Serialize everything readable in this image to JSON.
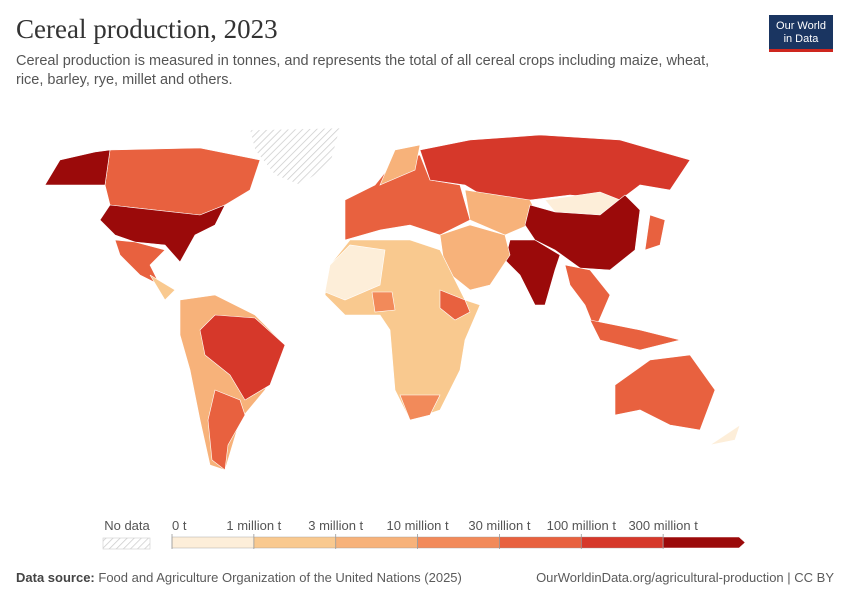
{
  "header": {
    "title": "Cereal production, 2023",
    "subtitle": "Cereal production is measured in tonnes, and represents the total of all cereal crops including maize, wheat, rice, barley, rye, millet and others.",
    "logo": [
      "Our World",
      "in Data"
    ]
  },
  "legend": {
    "no_data": "No data",
    "labels": [
      "0 t",
      "1 million t",
      "3 million t",
      "10 million t",
      "30 million t",
      "100 million t",
      "300 million t"
    ],
    "colors": [
      "#fdeed9",
      "#f9c98f",
      "#f7b27a",
      "#f28a5a",
      "#e8613f",
      "#d6382a",
      "#9b0a0a"
    ]
  },
  "footer": {
    "source_label": "Data source:",
    "source": "Food and Agriculture Organization of the United Nations (2025)",
    "url": "OurWorldinData.org/agricultural-production | CC BY"
  }
}
